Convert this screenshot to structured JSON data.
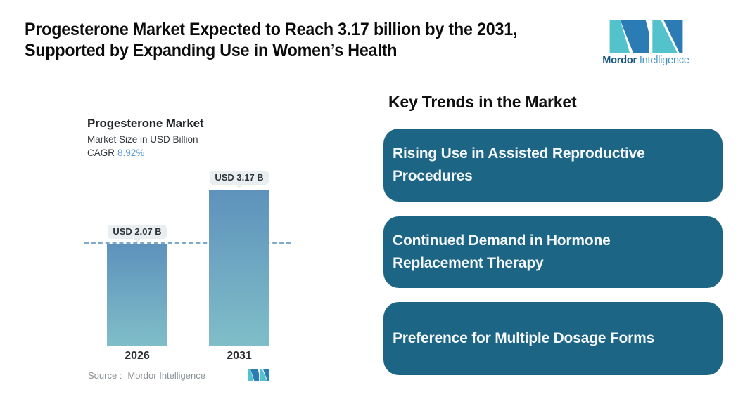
{
  "header": {
    "title_line1": "Progesterone Market Expected to Reach 3.17 billion by the 2031,",
    "title_line2": "Supported by Expanding Use in Women’s Health",
    "logo": {
      "brand_bold": "Mordor",
      "brand_light": "Intelligence"
    }
  },
  "chart": {
    "title": "Progesterone Market",
    "subtitle": "Market Size in USD Billion",
    "cagr_label": "CAGR",
    "cagr_value": "8.92%",
    "source_label": "Source :",
    "source_value": "Mordor Intelligence"
  },
  "chart_data": {
    "type": "bar",
    "title": "Progesterone Market",
    "subtitle": "Market Size in USD Billion",
    "categories": [
      "2026",
      "2031"
    ],
    "values": [
      2.07,
      3.17
    ],
    "bar_labels": [
      "USD 2.07 B",
      "USD 3.17 B"
    ],
    "cagr": "8.92%",
    "ylabel": "Market Size in USD Billion",
    "ylim": [
      0,
      3.5
    ],
    "grid": false,
    "legend": false,
    "reference_line": 2.07,
    "source": "Mordor Intelligence"
  },
  "trends": {
    "heading": "Key Trends in the Market",
    "cards": [
      {
        "line1": "Rising Use in Assisted Reproductive",
        "line2": "Procedures"
      },
      {
        "line1": "Continued Demand in Hormone",
        "line2": "Replacement Therapy"
      },
      {
        "line1": "Preference for Multiple Dosage Forms",
        "line2": ""
      }
    ]
  },
  "colors": {
    "accent_teal": "#53c2cb",
    "accent_blue": "#2b7cb5",
    "card_bg": "#1d6585",
    "bar_top": "#5e92bc",
    "bar_bottom": "#7fbec8",
    "label_box_bg": "#e9eef1",
    "dashed_line": "#7fa9c9",
    "cagr_value": "#5b9bd0",
    "wordmark_dark": "#19587f",
    "wordmark_light": "#4493c3"
  }
}
